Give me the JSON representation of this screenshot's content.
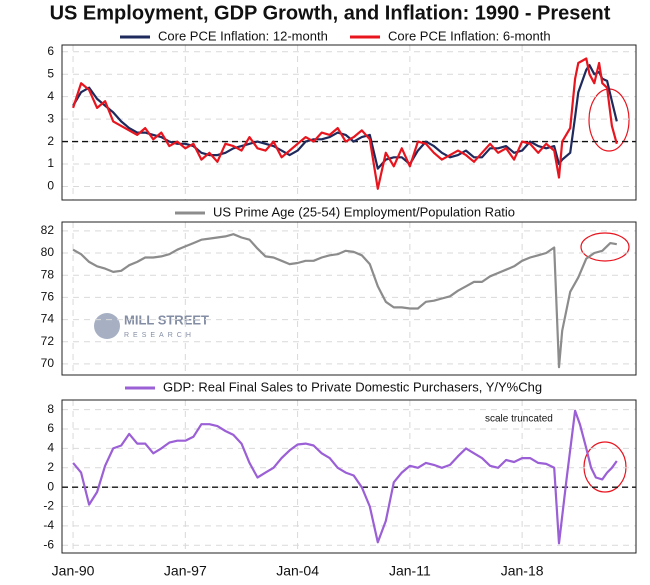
{
  "title": "US Employment, GDP Growth, and Inflation: 1990 - Present",
  "logo": {
    "line1": "MILL STREET",
    "line2": "RESEARCH"
  },
  "chart_data": [
    {
      "type": "line",
      "x": [
        1990,
        1990.5,
        1991,
        1991.5,
        1992,
        1992.5,
        1993,
        1993.5,
        1994,
        1994.5,
        1995,
        1995.5,
        1996,
        1996.5,
        1997,
        1997.5,
        1998,
        1998.5,
        1999,
        1999.5,
        2000,
        2000.5,
        2001,
        2001.5,
        2002,
        2002.5,
        2003,
        2003.5,
        2004,
        2004.5,
        2005,
        2005.5,
        2006,
        2006.5,
        2007,
        2007.5,
        2008,
        2008.5,
        2009,
        2009.5,
        2010,
        2010.5,
        2011,
        2011.5,
        2012,
        2012.5,
        2013,
        2013.5,
        2014,
        2014.5,
        2015,
        2015.5,
        2016,
        2016.5,
        2017,
        2017.5,
        2018,
        2018.5,
        2019,
        2019.5,
        2020,
        2020.3,
        2020.5,
        2021,
        2021.3,
        2021.5,
        2022,
        2022.2,
        2022.5,
        2022.8,
        2023,
        2023.3,
        2023.6,
        2023.9
      ],
      "series": [
        {
          "name": "Core PCE Inflation: 12-month",
          "color": "#1f2a5c",
          "values": [
            3.6,
            4.2,
            4.4,
            3.9,
            3.6,
            3.3,
            2.9,
            2.6,
            2.4,
            2.4,
            2.3,
            2.2,
            2.0,
            1.9,
            1.9,
            1.8,
            1.5,
            1.4,
            1.4,
            1.5,
            1.7,
            1.8,
            1.9,
            2.0,
            1.9,
            1.8,
            1.6,
            1.4,
            1.6,
            2.0,
            2.1,
            2.1,
            2.2,
            2.4,
            2.3,
            2.0,
            2.2,
            2.3,
            0.8,
            1.2,
            1.3,
            1.3,
            1.0,
            1.6,
            2.0,
            1.8,
            1.5,
            1.3,
            1.4,
            1.6,
            1.3,
            1.3,
            1.7,
            1.7,
            1.8,
            1.5,
            1.6,
            2.0,
            1.8,
            1.7,
            1.8,
            1.0,
            1.2,
            1.5,
            3.1,
            4.2,
            5.2,
            5.4,
            5.0,
            5.1,
            4.8,
            4.7,
            3.8,
            2.9
          ]
        },
        {
          "name": "Core PCE Inflation: 6-month",
          "color": "#e8141e",
          "values": [
            3.5,
            4.6,
            4.3,
            3.5,
            3.8,
            2.9,
            2.7,
            2.5,
            2.3,
            2.6,
            2.1,
            2.4,
            1.8,
            2.0,
            1.7,
            1.9,
            1.2,
            1.5,
            1.1,
            1.9,
            1.8,
            1.6,
            2.2,
            1.7,
            1.6,
            2.0,
            1.3,
            1.6,
            1.9,
            2.2,
            2.0,
            2.4,
            2.3,
            2.6,
            2.0,
            2.2,
            2.5,
            2.1,
            -0.1,
            1.5,
            0.9,
            1.7,
            0.9,
            2.0,
            1.9,
            1.5,
            1.2,
            1.4,
            1.6,
            1.4,
            1.1,
            1.5,
            1.9,
            1.5,
            1.7,
            1.2,
            2.0,
            1.9,
            1.5,
            1.9,
            1.6,
            0.4,
            2.0,
            2.6,
            4.8,
            5.5,
            5.7,
            5.0,
            4.6,
            5.5,
            4.6,
            4.4,
            2.7,
            1.9
          ]
        }
      ],
      "ylim": [
        -0.6,
        6.3
      ],
      "yticks": [
        0,
        1,
        2,
        3,
        4,
        5,
        6
      ],
      "hline": 2,
      "grid": true
    },
    {
      "type": "line",
      "x": [
        1990,
        1990.5,
        1991,
        1991.5,
        1992,
        1992.5,
        1993,
        1993.5,
        1994,
        1994.5,
        1995,
        1995.5,
        1996,
        1996.5,
        1997,
        1997.5,
        1998,
        1998.5,
        1999,
        1999.5,
        2000,
        2000.5,
        2001,
        2001.5,
        2002,
        2002.5,
        2003,
        2003.5,
        2004,
        2004.5,
        2005,
        2005.5,
        2006,
        2006.5,
        2007,
        2007.5,
        2008,
        2008.5,
        2009,
        2009.5,
        2010,
        2010.5,
        2011,
        2011.5,
        2012,
        2012.5,
        2013,
        2013.5,
        2014,
        2014.5,
        2015,
        2015.5,
        2016,
        2016.5,
        2017,
        2017.5,
        2018,
        2018.5,
        2019,
        2019.5,
        2020,
        2020.3,
        2020.5,
        2021,
        2021.5,
        2022,
        2022.5,
        2023,
        2023.5,
        2023.9
      ],
      "series": [
        {
          "name": "US Prime Age (25-54) Employment/Population Ratio",
          "color": "#8c8c8c",
          "values": [
            80.3,
            79.9,
            79.2,
            78.8,
            78.6,
            78.3,
            78.4,
            78.9,
            79.2,
            79.6,
            79.6,
            79.7,
            79.9,
            80.3,
            80.6,
            80.9,
            81.2,
            81.3,
            81.4,
            81.5,
            81.7,
            81.4,
            81.2,
            80.4,
            79.7,
            79.6,
            79.3,
            79.0,
            79.1,
            79.3,
            79.3,
            79.6,
            79.8,
            79.9,
            80.2,
            80.1,
            79.8,
            79.0,
            77.0,
            75.6,
            75.1,
            75.1,
            75.0,
            75.0,
            75.6,
            75.7,
            75.9,
            76.1,
            76.6,
            77.0,
            77.4,
            77.4,
            77.9,
            78.2,
            78.5,
            78.8,
            79.3,
            79.6,
            79.8,
            80.0,
            80.5,
            69.7,
            73.0,
            76.5,
            77.8,
            79.5,
            80.0,
            80.2,
            80.9,
            80.8
          ]
        }
      ],
      "ylim": [
        69,
        82.8
      ],
      "yticks": [
        70,
        72,
        74,
        76,
        78,
        80,
        82
      ],
      "grid": true
    },
    {
      "type": "line",
      "x": [
        1990,
        1990.5,
        1991,
        1991.5,
        1992,
        1992.5,
        1993,
        1993.5,
        1994,
        1994.5,
        1995,
        1995.5,
        1996,
        1996.5,
        1997,
        1997.5,
        1998,
        1998.5,
        1999,
        1999.5,
        2000,
        2000.5,
        2001,
        2001.5,
        2002,
        2002.5,
        2003,
        2003.5,
        2004,
        2004.5,
        2005,
        2005.5,
        2006,
        2006.5,
        2007,
        2007.5,
        2008,
        2008.5,
        2009,
        2009.5,
        2010,
        2010.5,
        2011,
        2011.5,
        2012,
        2012.5,
        2013,
        2013.5,
        2014,
        2014.5,
        2015,
        2015.5,
        2016,
        2016.5,
        2017,
        2017.5,
        2018,
        2018.5,
        2019,
        2019.5,
        2020,
        2020.3,
        2020.8,
        2021.3,
        2021.6,
        2022,
        2022.3,
        2022.6,
        2023,
        2023.3,
        2023.6,
        2023.9
      ],
      "series": [
        {
          "name": "GDP: Real Final Sales to Private Domestic Purchasers, Y/Y%Chg",
          "color": "#9b5fd6",
          "values": [
            2.5,
            1.5,
            -1.8,
            -0.5,
            2.2,
            4.0,
            4.3,
            5.5,
            4.5,
            4.5,
            3.5,
            4.0,
            4.6,
            4.8,
            4.8,
            5.2,
            6.5,
            6.5,
            6.3,
            5.8,
            5.4,
            4.5,
            2.5,
            1.0,
            1.5,
            2.0,
            3.0,
            3.8,
            4.4,
            4.5,
            4.3,
            3.5,
            3.0,
            2.0,
            1.5,
            1.2,
            0.0,
            -2.0,
            -5.7,
            -3.5,
            0.5,
            1.5,
            2.2,
            2.0,
            2.5,
            2.3,
            2.0,
            2.3,
            3.2,
            4.0,
            3.5,
            3.0,
            2.2,
            2.0,
            2.8,
            2.6,
            3.0,
            3.0,
            2.5,
            2.4,
            2.0,
            -5.8,
            1.2,
            7.9,
            6.5,
            4.0,
            2.0,
            1.0,
            0.8,
            1.5,
            2.0,
            2.7
          ]
        }
      ],
      "ylim": [
        -6.8,
        9.0
      ],
      "yticks": [
        -6,
        -4,
        -2,
        0,
        2,
        4,
        6,
        8
      ],
      "hline": 0,
      "grid": true,
      "annotation": "scale truncated",
      "xlim": [
        1989.31,
        2025.1
      ],
      "xticks": [
        {
          "value": 1990,
          "label": "Jan-90"
        },
        {
          "value": 1997,
          "label": "Jan-97"
        },
        {
          "value": 2004,
          "label": "Jan-04"
        },
        {
          "value": 2011,
          "label": "Jan-11"
        },
        {
          "value": 2018,
          "label": "Jan-18"
        }
      ]
    }
  ]
}
